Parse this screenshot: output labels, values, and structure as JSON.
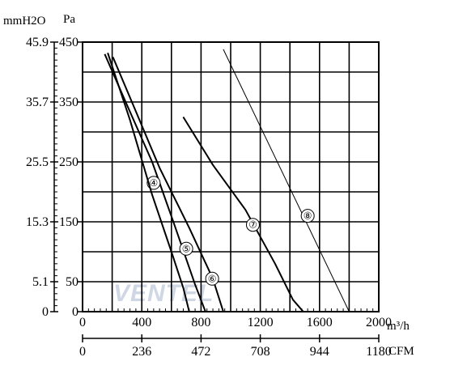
{
  "chart_data": {
    "type": "line",
    "title": "",
    "watermark": "VENTEL",
    "left_axis_labels": {
      "outer_unit": "mmH2O",
      "inner_unit": "Pa"
    },
    "bottom_axis_labels": {
      "inner_unit": "m³/h",
      "outer_unit": "CFM"
    },
    "y_pa": {
      "range": [
        0,
        450
      ],
      "ticks": [
        "0",
        "50",
        "150",
        "250",
        "350",
        "450"
      ],
      "tick_values": [
        0,
        50,
        150,
        250,
        350,
        450
      ]
    },
    "y_mmh2o": {
      "ticks": [
        "0",
        "5.1",
        "15.3",
        "25.5",
        "35.7",
        "45.9"
      ],
      "tick_values": [
        0,
        50,
        150,
        250,
        350,
        450
      ]
    },
    "x_m3h": {
      "range": [
        0,
        2000
      ],
      "ticks": [
        "0",
        "400",
        "800",
        "1200",
        "1600",
        "2000"
      ],
      "tick_values": [
        0,
        400,
        800,
        1200,
        1600,
        2000
      ]
    },
    "x_cfm": {
      "ticks": [
        "0",
        "236",
        "472",
        "708",
        "944",
        "1180"
      ],
      "tick_values": [
        0,
        400,
        800,
        1200,
        1600,
        2000
      ]
    },
    "grid": true,
    "series": [
      {
        "name": "④",
        "style": "thick",
        "label_at": [
          480,
          215
        ],
        "points": [
          [
            150,
            430
          ],
          [
            300,
            345
          ],
          [
            470,
            250
          ],
          [
            620,
            145
          ],
          [
            760,
            45
          ],
          [
            830,
            0
          ]
        ]
      },
      {
        "name": "⑤",
        "style": "thick",
        "label_at": [
          700,
          105
        ],
        "points": [
          [
            170,
            432
          ],
          [
            320,
            320
          ],
          [
            470,
            195
          ],
          [
            600,
            100
          ],
          [
            680,
            40
          ],
          [
            720,
            0
          ]
        ]
      },
      {
        "name": "⑥",
        "style": "thick",
        "label_at": [
          875,
          55
        ],
        "points": [
          [
            205,
            425
          ],
          [
            350,
            340
          ],
          [
            520,
            240
          ],
          [
            720,
            140
          ],
          [
            880,
            55
          ],
          [
            950,
            0
          ]
        ]
      },
      {
        "name": "⑦",
        "style": "thick",
        "label_at": [
          1150,
          145
        ],
        "points": [
          [
            680,
            325
          ],
          [
            880,
            245
          ],
          [
            1100,
            170
          ],
          [
            1300,
            80
          ],
          [
            1420,
            20
          ],
          [
            1490,
            0
          ]
        ]
      },
      {
        "name": "⑧",
        "style": "thin",
        "label_at": [
          1520,
          160
        ],
        "points": [
          [
            950,
            438
          ],
          [
            1800,
            0
          ]
        ]
      }
    ]
  }
}
